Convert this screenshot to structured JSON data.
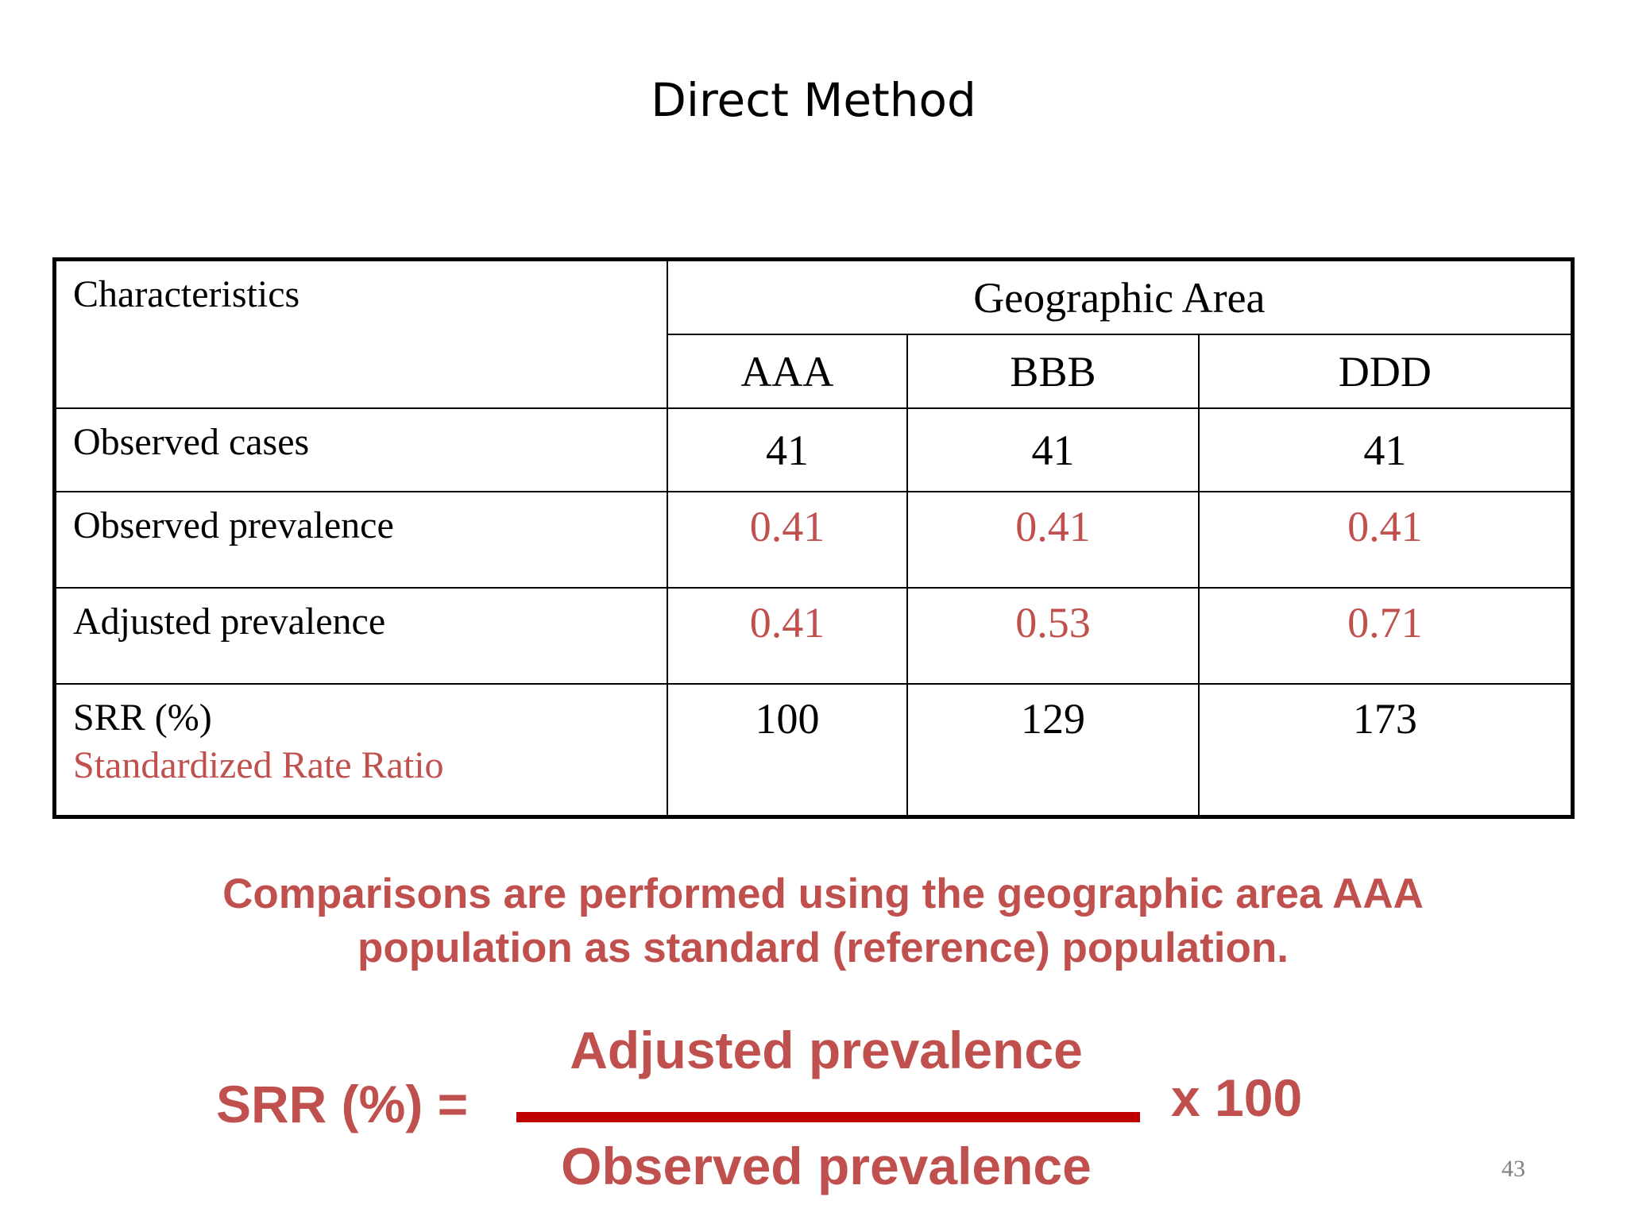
{
  "title": "Direct Method",
  "table": {
    "characteristics_header": "Characteristics",
    "group_header": "Geographic Area",
    "columns": [
      "AAA",
      "BBB",
      "DDD"
    ],
    "rows": [
      {
        "label": "Observed cases",
        "sublabel": "",
        "values": [
          "41",
          "41",
          "41"
        ],
        "highlight": false
      },
      {
        "label": "Observed prevalence",
        "sublabel": "",
        "values": [
          "0.41",
          "0.41",
          "0.41"
        ],
        "highlight": true
      },
      {
        "label": "Adjusted prevalence",
        "sublabel": "",
        "values": [
          "0.41",
          "0.53",
          "0.71"
        ],
        "highlight": true
      },
      {
        "label": "SRR (%)",
        "sublabel": "Standardized Rate Ratio",
        "values": [
          "100",
          "129",
          "173"
        ],
        "highlight": false
      }
    ]
  },
  "note": {
    "line1": "Comparisons are performed using the geographic area AAA",
    "line2": "population as standard (reference) population."
  },
  "formula": {
    "lhs": "SRR (%) =",
    "numerator": "Adjusted prevalence",
    "denominator": "Observed prevalence",
    "multiplier": "x 100"
  },
  "page_number": "43",
  "colors": {
    "accent": "#c0504d",
    "fraction_bar": "#c00000",
    "page_number": "#808080"
  }
}
